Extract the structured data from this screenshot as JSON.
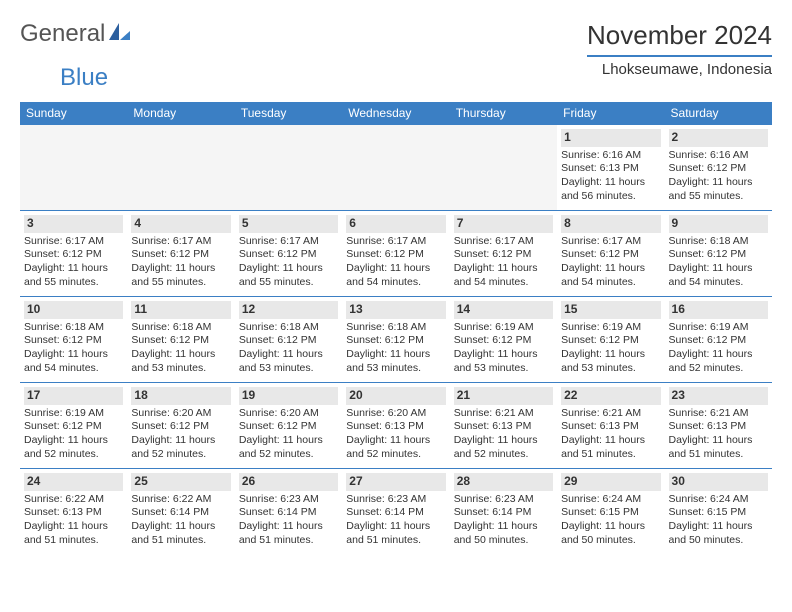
{
  "logo": {
    "word1": "General",
    "word2": "Blue"
  },
  "title": "November 2024",
  "location": "Lhokseumawe, Indonesia",
  "style": {
    "accent": "#3b7fc4",
    "header_bg": "#3b7fc4",
    "header_fg": "#ffffff",
    "daynum_bg": "#e8e8e8",
    "border": "#3b7fc4",
    "spacer_bg": "#eeeeee",
    "empty_bg": "#f5f5f5",
    "body_bg": "#ffffff",
    "text": "#333333",
    "logo_gray": "#555555"
  },
  "columns": [
    "Sunday",
    "Monday",
    "Tuesday",
    "Wednesday",
    "Thursday",
    "Friday",
    "Saturday"
  ],
  "weeks": [
    [
      null,
      null,
      null,
      null,
      null,
      {
        "d": "1",
        "sr": "6:16 AM",
        "ss": "6:13 PM",
        "dl": "11 hours and 56 minutes."
      },
      {
        "d": "2",
        "sr": "6:16 AM",
        "ss": "6:12 PM",
        "dl": "11 hours and 55 minutes."
      }
    ],
    [
      {
        "d": "3",
        "sr": "6:17 AM",
        "ss": "6:12 PM",
        "dl": "11 hours and 55 minutes."
      },
      {
        "d": "4",
        "sr": "6:17 AM",
        "ss": "6:12 PM",
        "dl": "11 hours and 55 minutes."
      },
      {
        "d": "5",
        "sr": "6:17 AM",
        "ss": "6:12 PM",
        "dl": "11 hours and 55 minutes."
      },
      {
        "d": "6",
        "sr": "6:17 AM",
        "ss": "6:12 PM",
        "dl": "11 hours and 54 minutes."
      },
      {
        "d": "7",
        "sr": "6:17 AM",
        "ss": "6:12 PM",
        "dl": "11 hours and 54 minutes."
      },
      {
        "d": "8",
        "sr": "6:17 AM",
        "ss": "6:12 PM",
        "dl": "11 hours and 54 minutes."
      },
      {
        "d": "9",
        "sr": "6:18 AM",
        "ss": "6:12 PM",
        "dl": "11 hours and 54 minutes."
      }
    ],
    [
      {
        "d": "10",
        "sr": "6:18 AM",
        "ss": "6:12 PM",
        "dl": "11 hours and 54 minutes."
      },
      {
        "d": "11",
        "sr": "6:18 AM",
        "ss": "6:12 PM",
        "dl": "11 hours and 53 minutes."
      },
      {
        "d": "12",
        "sr": "6:18 AM",
        "ss": "6:12 PM",
        "dl": "11 hours and 53 minutes."
      },
      {
        "d": "13",
        "sr": "6:18 AM",
        "ss": "6:12 PM",
        "dl": "11 hours and 53 minutes."
      },
      {
        "d": "14",
        "sr": "6:19 AM",
        "ss": "6:12 PM",
        "dl": "11 hours and 53 minutes."
      },
      {
        "d": "15",
        "sr": "6:19 AM",
        "ss": "6:12 PM",
        "dl": "11 hours and 53 minutes."
      },
      {
        "d": "16",
        "sr": "6:19 AM",
        "ss": "6:12 PM",
        "dl": "11 hours and 52 minutes."
      }
    ],
    [
      {
        "d": "17",
        "sr": "6:19 AM",
        "ss": "6:12 PM",
        "dl": "11 hours and 52 minutes."
      },
      {
        "d": "18",
        "sr": "6:20 AM",
        "ss": "6:12 PM",
        "dl": "11 hours and 52 minutes."
      },
      {
        "d": "19",
        "sr": "6:20 AM",
        "ss": "6:12 PM",
        "dl": "11 hours and 52 minutes."
      },
      {
        "d": "20",
        "sr": "6:20 AM",
        "ss": "6:13 PM",
        "dl": "11 hours and 52 minutes."
      },
      {
        "d": "21",
        "sr": "6:21 AM",
        "ss": "6:13 PM",
        "dl": "11 hours and 52 minutes."
      },
      {
        "d": "22",
        "sr": "6:21 AM",
        "ss": "6:13 PM",
        "dl": "11 hours and 51 minutes."
      },
      {
        "d": "23",
        "sr": "6:21 AM",
        "ss": "6:13 PM",
        "dl": "11 hours and 51 minutes."
      }
    ],
    [
      {
        "d": "24",
        "sr": "6:22 AM",
        "ss": "6:13 PM",
        "dl": "11 hours and 51 minutes."
      },
      {
        "d": "25",
        "sr": "6:22 AM",
        "ss": "6:14 PM",
        "dl": "11 hours and 51 minutes."
      },
      {
        "d": "26",
        "sr": "6:23 AM",
        "ss": "6:14 PM",
        "dl": "11 hours and 51 minutes."
      },
      {
        "d": "27",
        "sr": "6:23 AM",
        "ss": "6:14 PM",
        "dl": "11 hours and 51 minutes."
      },
      {
        "d": "28",
        "sr": "6:23 AM",
        "ss": "6:14 PM",
        "dl": "11 hours and 50 minutes."
      },
      {
        "d": "29",
        "sr": "6:24 AM",
        "ss": "6:15 PM",
        "dl": "11 hours and 50 minutes."
      },
      {
        "d": "30",
        "sr": "6:24 AM",
        "ss": "6:15 PM",
        "dl": "11 hours and 50 minutes."
      }
    ]
  ],
  "labels": {
    "sunrise": "Sunrise:",
    "sunset": "Sunset:",
    "daylight": "Daylight:"
  }
}
